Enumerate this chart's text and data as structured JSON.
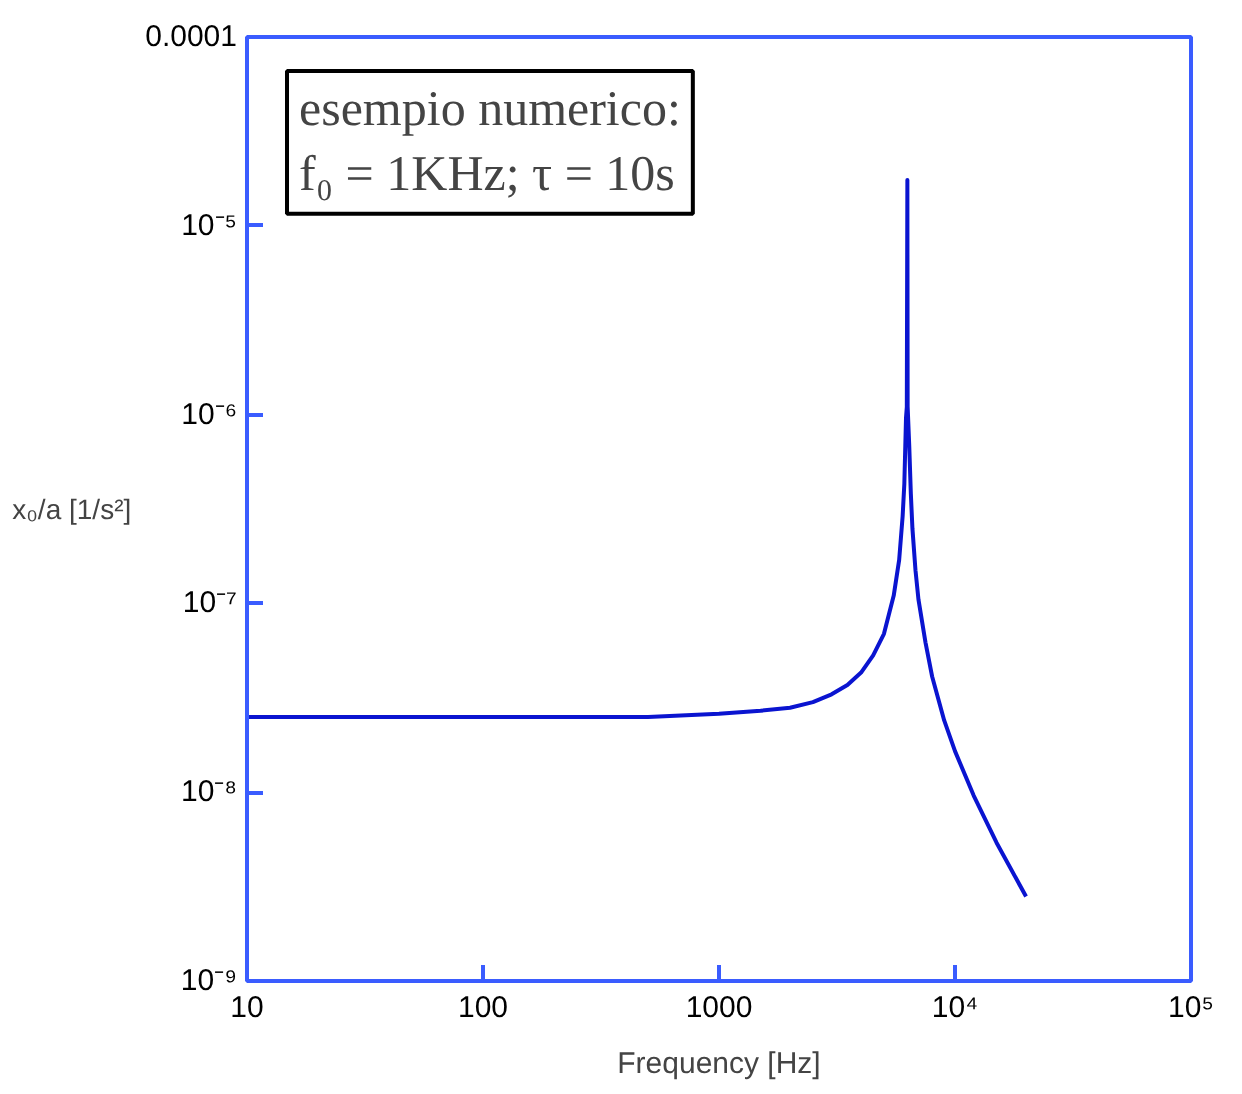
{
  "chart_data": {
    "type": "line",
    "xlabel": "Frequency [Hz]",
    "ylabel": "x₀/a [1/s²]",
    "log": "xy",
    "grid": false,
    "annotations": [
      "esempio numerico:",
      "f₀ = 1KHz; τ = 10s"
    ],
    "xlim": [
      10,
      100000
    ],
    "ylim": [
      1e-09,
      0.0001
    ],
    "xticks": [
      10,
      100,
      1000,
      {
        "value": 10000,
        "label": "10⁴"
      },
      {
        "value": 100000,
        "label": "10⁵"
      }
    ],
    "yticks": [
      {
        "value": 1e-09,
        "label": "10⁻⁹"
      },
      {
        "value": 1e-08,
        "label": "10⁻⁸"
      },
      {
        "value": 1e-07,
        "label": "10⁻⁷"
      },
      {
        "value": 1e-06,
        "label": "10⁻⁶"
      },
      {
        "value": 1e-05,
        "label": "10⁻⁵"
      },
      0.0001
    ],
    "series": [
      {
        "color": "#0a14d0",
        "x": [
          10,
          20,
          50,
          100,
          200,
          500,
          1000,
          1500,
          2000,
          2500,
          3000,
          3500,
          4000,
          4500,
          5000,
          5500,
          5800,
          6000,
          6100,
          6200,
          6250,
          6283,
          6300,
          6400,
          6500,
          6600,
          6800,
          7000,
          7500,
          8000,
          9000,
          10000,
          12000,
          15000,
          20000
        ],
        "values": [
          2.5e-08,
          2.5e-08,
          2.5e-08,
          2.5e-08,
          2.5e-08,
          2.5e-08,
          2.6e-08,
          2.7e-08,
          2.8e-08,
          3e-08,
          3.3e-08,
          3.7e-08,
          4.3e-08,
          5.3e-08,
          6.9e-08,
          1.1e-07,
          1.7e-07,
          2.9e-07,
          4.3e-07,
          9.6e-07,
          1.1e-06,
          1.75e-05,
          1.1e-06,
          6.8e-07,
          3.8e-07,
          2.5e-07,
          1.5e-07,
          1.05e-07,
          6.2e-08,
          4.1e-08,
          2.4e-08,
          1.65e-08,
          9.6e-09,
          5.4e-09,
          2.8e-09
        ]
      }
    ]
  }
}
